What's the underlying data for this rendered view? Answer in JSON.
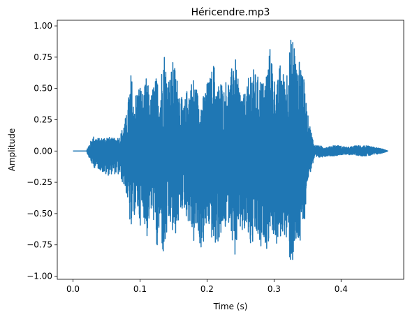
{
  "chart_data": {
    "type": "line",
    "title": "Héricendre.mp3",
    "xlabel": "Time (s)",
    "ylabel": "Amplitude",
    "xlim": [
      -0.0235,
      0.4935
    ],
    "ylim": [
      -1.025,
      1.045
    ],
    "xticks": [
      0.0,
      0.1,
      0.2,
      0.3,
      0.4
    ],
    "xtick_labels": [
      "0.0",
      "0.1",
      "0.2",
      "0.3",
      "0.4"
    ],
    "yticks": [
      -1.0,
      -0.75,
      -0.5,
      -0.25,
      0.0,
      0.25,
      0.5,
      0.75,
      1.0
    ],
    "ytick_labels": [
      "−1.00",
      "−0.75",
      "−0.50",
      "−0.25",
      "0.00",
      "0.25",
      "0.50",
      "0.75",
      "1.00"
    ],
    "grid": false,
    "line_color": "#1f77b4",
    "duration_s": 0.47,
    "series": [
      {
        "envelope_points": {
          "t": [
            0.0,
            0.02,
            0.022,
            0.03,
            0.04,
            0.05,
            0.06,
            0.07,
            0.08,
            0.087,
            0.09,
            0.095,
            0.1,
            0.105,
            0.11,
            0.115,
            0.12,
            0.125,
            0.13,
            0.135,
            0.14,
            0.145,
            0.15,
            0.155,
            0.16,
            0.165,
            0.17,
            0.175,
            0.18,
            0.185,
            0.19,
            0.195,
            0.2,
            0.205,
            0.21,
            0.215,
            0.22,
            0.225,
            0.23,
            0.235,
            0.24,
            0.245,
            0.25,
            0.255,
            0.26,
            0.265,
            0.27,
            0.275,
            0.28,
            0.285,
            0.29,
            0.295,
            0.3,
            0.305,
            0.31,
            0.315,
            0.32,
            0.325,
            0.33,
            0.335,
            0.34,
            0.345,
            0.35,
            0.36,
            0.37,
            0.38,
            0.39,
            0.4,
            0.41,
            0.42,
            0.43,
            0.44,
            0.45,
            0.46,
            0.47
          ],
          "max": [
            0.0,
            0.0,
            0.03,
            0.12,
            0.1,
            0.12,
            0.1,
            0.12,
            0.3,
            0.65,
            0.4,
            0.5,
            0.55,
            0.45,
            0.62,
            0.4,
            0.55,
            0.6,
            0.5,
            0.87,
            0.65,
            0.6,
            0.75,
            0.6,
            0.5,
            0.35,
            0.5,
            0.55,
            0.6,
            0.5,
            0.4,
            0.45,
            0.55,
            0.6,
            0.73,
            0.5,
            0.6,
            0.5,
            0.62,
            0.55,
            0.88,
            0.6,
            0.5,
            0.45,
            0.52,
            0.7,
            0.65,
            0.6,
            0.6,
            0.55,
            0.7,
            0.87,
            0.6,
            0.55,
            0.75,
            0.6,
            0.7,
            0.9,
            0.95,
            0.6,
            0.83,
            0.55,
            0.3,
            0.05,
            0.04,
            0.03,
            0.05,
            0.04,
            0.03,
            0.04,
            0.05,
            0.04,
            0.03,
            0.02,
            0.0
          ],
          "min": [
            0.0,
            0.0,
            -0.03,
            -0.13,
            -0.15,
            -0.2,
            -0.18,
            -0.2,
            -0.35,
            -0.68,
            -0.55,
            -0.45,
            -0.6,
            -0.5,
            -0.72,
            -0.5,
            -0.55,
            -0.85,
            -0.6,
            -0.9,
            -0.7,
            -0.6,
            -0.72,
            -0.65,
            -0.5,
            -0.45,
            -0.55,
            -0.6,
            -0.75,
            -0.65,
            -0.8,
            -0.75,
            -0.6,
            -0.65,
            -0.8,
            -0.75,
            -0.7,
            -0.65,
            -0.6,
            -0.55,
            -0.9,
            -0.75,
            -0.65,
            -0.7,
            -0.65,
            -0.8,
            -0.75,
            -0.7,
            -0.85,
            -0.7,
            -0.8,
            -0.6,
            -0.7,
            -0.8,
            -0.7,
            -0.65,
            -0.8,
            -0.92,
            -0.9,
            -0.75,
            -0.8,
            -0.6,
            -0.25,
            -0.07,
            -0.05,
            -0.04,
            -0.04,
            -0.03,
            -0.03,
            -0.03,
            -0.04,
            -0.04,
            -0.03,
            -0.02,
            0.0
          ]
        }
      }
    ]
  }
}
